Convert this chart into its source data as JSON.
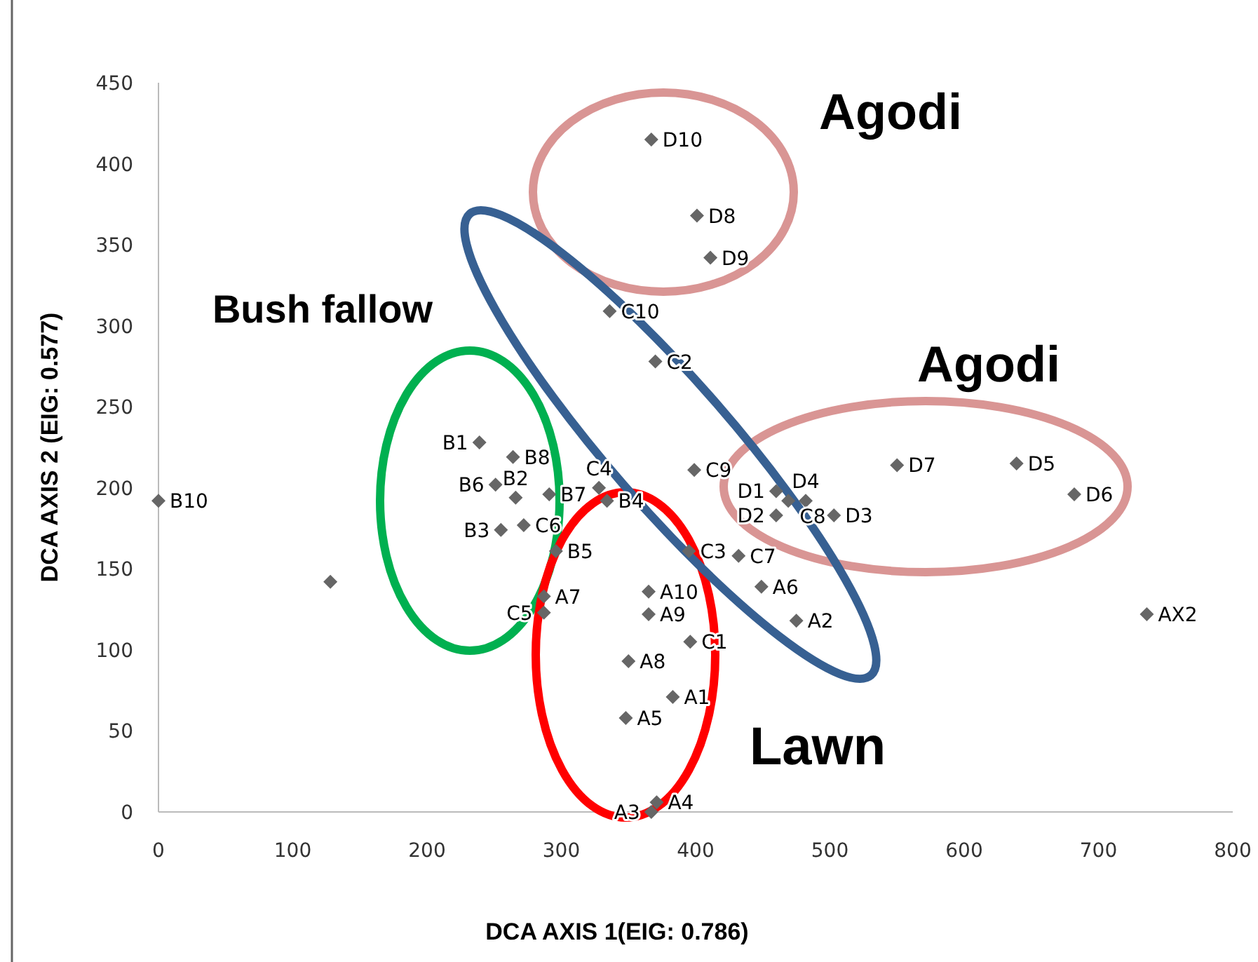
{
  "chart_data": {
    "type": "scatter",
    "xlabel": "DCA  AXIS 1(EIG: 0.786)",
    "ylabel": "DCA AXIS 2 (EIG: 0.577)",
    "xlim": [
      0,
      800
    ],
    "ylim": [
      0,
      450
    ],
    "xticks": [
      0,
      100,
      200,
      300,
      400,
      500,
      600,
      700,
      800
    ],
    "yticks": [
      0,
      50,
      100,
      150,
      200,
      250,
      300,
      350,
      400,
      450
    ],
    "grid": false,
    "legend": false,
    "marker": "diamond",
    "annotations": [
      "Agodi",
      "Agodi",
      "Bush fallow",
      "Lawn"
    ],
    "series": [
      {
        "name": "B10",
        "color": "#666666",
        "x": [
          0
        ],
        "values": [
          192
        ]
      },
      {
        "color": "#666666",
        "x": [
          128
        ],
        "values": [
          142
        ]
      },
      {
        "name": "B1",
        "color": "#666666",
        "x": [
          239
        ],
        "values": [
          228
        ]
      },
      {
        "name": "B8",
        "color": "#666666",
        "x": [
          264
        ],
        "values": [
          219
        ]
      },
      {
        "name": "B6",
        "color": "#666666",
        "x": [
          251
        ],
        "values": [
          202
        ]
      },
      {
        "name": "B2",
        "color": "#666666",
        "x": [
          266
        ],
        "values": [
          194
        ]
      },
      {
        "name": "B7",
        "color": "#666666",
        "x": [
          291
        ],
        "values": [
          196
        ]
      },
      {
        "name": "B3",
        "color": "#666666",
        "x": [
          255
        ],
        "values": [
          174
        ]
      },
      {
        "name": "C6",
        "color": "#666666",
        "x": [
          272
        ],
        "values": [
          177
        ]
      },
      {
        "name": "B4",
        "color": "#666666",
        "x": [
          334
        ],
        "values": [
          192
        ]
      },
      {
        "name": "B5",
        "color": "#666666",
        "x": [
          296
        ],
        "values": [
          161
        ]
      },
      {
        "name": "C4",
        "color": "#666666",
        "x": [
          328
        ],
        "values": [
          200
        ]
      },
      {
        "name": "A7",
        "color": "#666666",
        "x": [
          287
        ],
        "values": [
          133
        ]
      },
      {
        "name": "C5",
        "color": "#666666",
        "x": [
          287
        ],
        "values": [
          123
        ]
      },
      {
        "name": "A10",
        "color": "#666666",
        "x": [
          365
        ],
        "values": [
          136
        ]
      },
      {
        "name": "A9",
        "color": "#666666",
        "x": [
          365
        ],
        "values": [
          122
        ]
      },
      {
        "name": "C3",
        "color": "#666666",
        "x": [
          395
        ],
        "values": [
          161
        ]
      },
      {
        "name": "C1",
        "color": "#666666",
        "x": [
          396
        ],
        "values": [
          105
        ]
      },
      {
        "name": "A8",
        "color": "#666666",
        "x": [
          350
        ],
        "values": [
          93
        ]
      },
      {
        "name": "A1",
        "color": "#666666",
        "x": [
          383
        ],
        "values": [
          71
        ]
      },
      {
        "name": "A5",
        "color": "#666666",
        "x": [
          348
        ],
        "values": [
          58
        ]
      },
      {
        "name": "A4",
        "color": "#666666",
        "x": [
          371
        ],
        "values": [
          6
        ]
      },
      {
        "name": "A3",
        "color": "#666666",
        "x": [
          367
        ],
        "values": [
          0
        ]
      },
      {
        "name": "C9",
        "color": "#666666",
        "x": [
          399
        ],
        "values": [
          211
        ]
      },
      {
        "name": "D1",
        "color": "#666666",
        "x": [
          460
        ],
        "values": [
          198
        ]
      },
      {
        "name": "D4",
        "color": "#666666",
        "x": [
          482
        ],
        "values": [
          192
        ]
      },
      {
        "name": "C8",
        "color": "#666666",
        "x": [
          469
        ],
        "values": [
          192
        ]
      },
      {
        "name": "D2",
        "color": "#666666",
        "x": [
          460
        ],
        "values": [
          183
        ]
      },
      {
        "name": "D3",
        "color": "#666666",
        "x": [
          503
        ],
        "values": [
          183
        ]
      },
      {
        "name": "C7",
        "color": "#666666",
        "x": [
          432
        ],
        "values": [
          158
        ]
      },
      {
        "name": "A6",
        "color": "#666666",
        "x": [
          449
        ],
        "values": [
          139
        ]
      },
      {
        "name": "A2",
        "color": "#666666",
        "x": [
          475
        ],
        "values": [
          118
        ]
      },
      {
        "name": "D10",
        "color": "#666666",
        "x": [
          367
        ],
        "values": [
          415
        ]
      },
      {
        "name": "D8",
        "color": "#666666",
        "x": [
          401
        ],
        "values": [
          368
        ]
      },
      {
        "name": "D9",
        "color": "#666666",
        "x": [
          411
        ],
        "values": [
          342
        ]
      },
      {
        "name": "C10",
        "color": "#666666",
        "x": [
          336
        ],
        "values": [
          309
        ]
      },
      {
        "name": "C2",
        "color": "#666666",
        "x": [
          370
        ],
        "values": [
          278
        ]
      },
      {
        "name": "D7",
        "color": "#666666",
        "x": [
          550
        ],
        "values": [
          214
        ]
      },
      {
        "name": "D5",
        "color": "#666666",
        "x": [
          639
        ],
        "values": [
          215
        ]
      },
      {
        "name": "D6",
        "color": "#666666",
        "x": [
          682
        ],
        "values": [
          196
        ]
      },
      {
        "name": "AX2",
        "color": "#666666",
        "x": [
          736
        ],
        "values": [
          122
        ]
      }
    ]
  }
}
